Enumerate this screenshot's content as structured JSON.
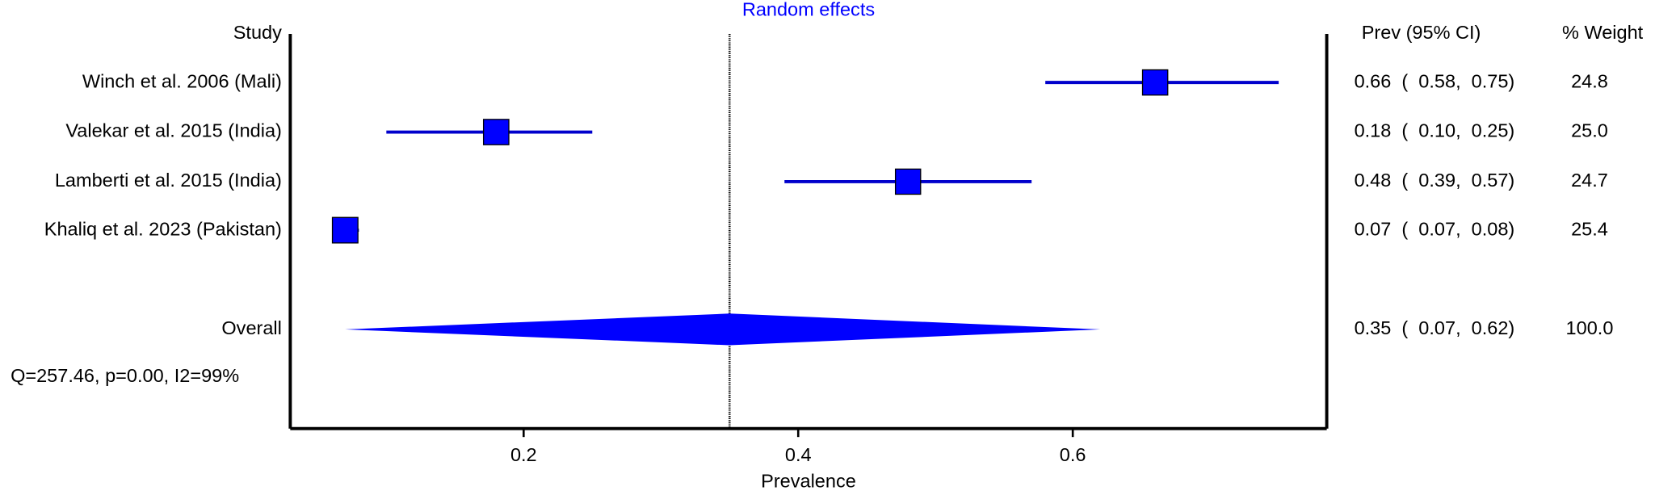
{
  "chart_data": {
    "type": "forest",
    "title": "Random effects",
    "study_header": "Study",
    "ci_header": "Prev (95% CI)",
    "weight_header": "% Weight",
    "x_label": "Prevalence",
    "xlim": [
      0.03,
      0.785
    ],
    "xticks": [
      0.2,
      0.4,
      0.6
    ],
    "color": "#0000ff",
    "studies": [
      {
        "name": "Winch et al. 2006 (Mali)",
        "value": 0.66,
        "lower": 0.58,
        "upper": 0.75,
        "weight": 24.8,
        "ci_label": "0.66  (  0.58,  0.75)",
        "weight_label": "24.8"
      },
      {
        "name": "Valekar et al. 2015 (India)",
        "value": 0.18,
        "lower": 0.1,
        "upper": 0.25,
        "weight": 25.0,
        "ci_label": "0.18  (  0.10,  0.25)",
        "weight_label": "25.0"
      },
      {
        "name": "Lamberti et al. 2015 (India)",
        "value": 0.48,
        "lower": 0.39,
        "upper": 0.57,
        "weight": 24.7,
        "ci_label": "0.48  (  0.39,  0.57)",
        "weight_label": "24.7"
      },
      {
        "name": "Khaliq et al. 2023 (Pakistan)",
        "value": 0.07,
        "lower": 0.07,
        "upper": 0.08,
        "weight": 25.4,
        "ci_label": "0.07  (  0.07,  0.08)",
        "weight_label": "25.4"
      }
    ],
    "overall": {
      "name": "Overall",
      "value": 0.35,
      "lower": 0.07,
      "upper": 0.62,
      "weight": 100.0,
      "ci_label": "0.35  (  0.07,  0.62)",
      "weight_label": "100.0"
    },
    "heterogeneity": "Q=257.46, p=0.00, I2=99%"
  }
}
